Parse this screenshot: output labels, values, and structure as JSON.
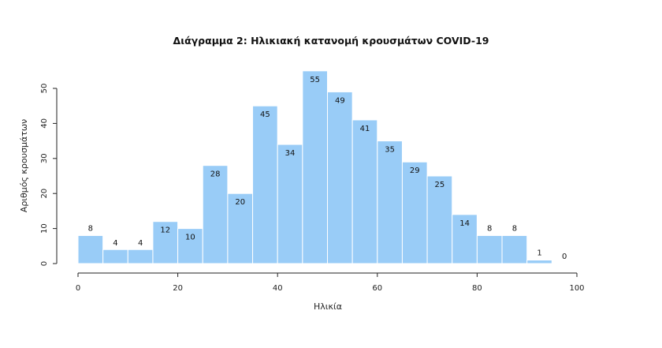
{
  "chart_data": {
    "type": "bar",
    "title": "Διάγραμμα 2: Ηλικιακή κατανομή κρουσμάτων COVID-19",
    "xlabel": "Ηλικία",
    "ylabel": "Αριθμός κρουσμάτων",
    "bin_edges": [
      0,
      5,
      10,
      15,
      20,
      25,
      30,
      35,
      40,
      45,
      50,
      55,
      60,
      65,
      70,
      75,
      80,
      85,
      90,
      95,
      100
    ],
    "values": [
      8,
      4,
      4,
      12,
      10,
      28,
      20,
      45,
      34,
      55,
      49,
      41,
      35,
      29,
      25,
      14,
      8,
      8,
      1,
      0
    ],
    "xlim": [
      0,
      100
    ],
    "ylim": [
      0,
      55
    ],
    "xticks": [
      0,
      20,
      40,
      60,
      80,
      100
    ],
    "yticks": [
      0,
      10,
      20,
      30,
      40,
      50
    ],
    "bar_color": "#99ccf7",
    "grid": false
  }
}
